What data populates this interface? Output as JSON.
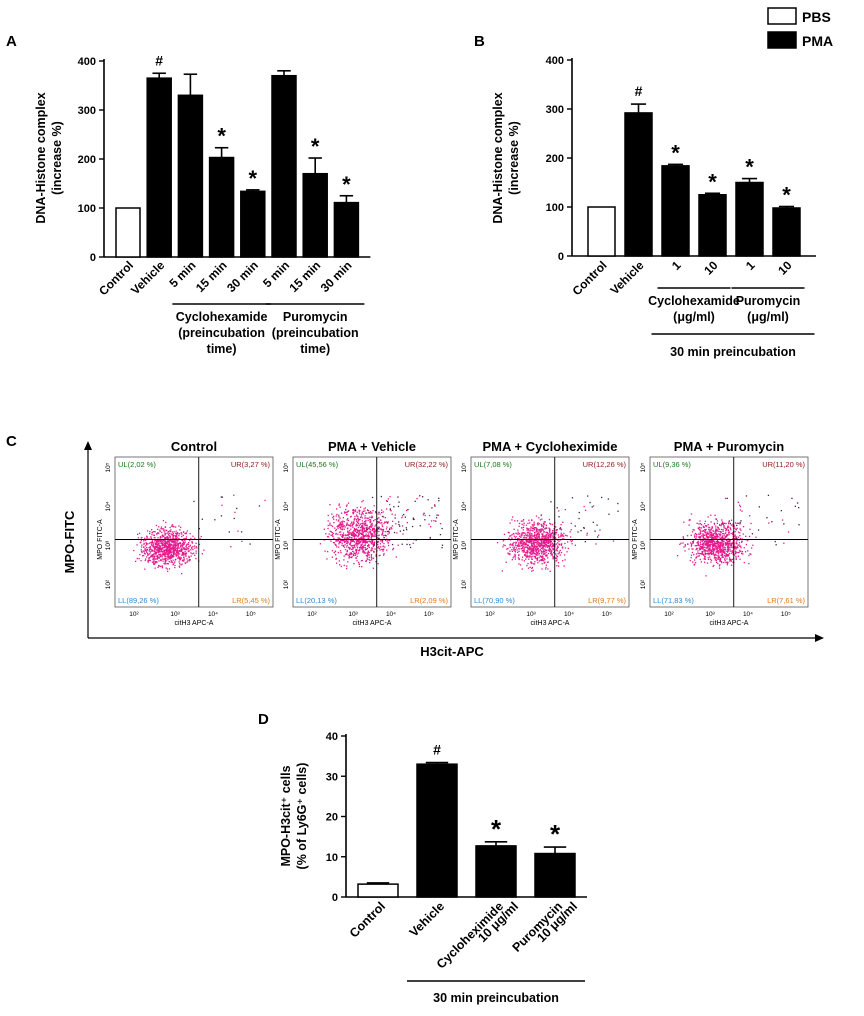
{
  "panel_letters": {
    "A": "A",
    "B": "B",
    "C": "C",
    "D": "D"
  },
  "legend": {
    "items": [
      {
        "label": "PBS",
        "fill": "#ffffff"
      },
      {
        "label": "PMA",
        "fill": "#000000"
      }
    ]
  },
  "colors": {
    "bar_pma": "#000000",
    "bar_pbs": "#ffffff",
    "axis": "#000000",
    "dots_main": "#e6198c",
    "dots_dark": "#3d2646",
    "gate_ul": "#1a7a1a",
    "gate_ur": "#8b1a1a",
    "gate_ll": "#2a8ad4",
    "gate_lr": "#e07a1a"
  },
  "chart_data": [
    {
      "id": "A",
      "type": "bar",
      "ylabel": "DNA-Histone complex (increase %)",
      "ylabel_lines": [
        "DNA-Histone complex",
        "(increase %)"
      ],
      "ylim": [
        0,
        400
      ],
      "yticks": [
        0,
        100,
        200,
        300,
        400
      ],
      "categories": [
        "Control",
        "Vehicle",
        "5 min",
        "15 min",
        "30 min",
        "5 min",
        "15 min",
        "30 min"
      ],
      "values": [
        100,
        365,
        330,
        203,
        134,
        370,
        170,
        111
      ],
      "errors": [
        0,
        10,
        43,
        20,
        3,
        10,
        32,
        14
      ],
      "fills": [
        "#ffffff",
        "#000000",
        "#000000",
        "#000000",
        "#000000",
        "#000000",
        "#000000",
        "#000000"
      ],
      "markers": [
        "",
        "#",
        "",
        "*",
        "*",
        "",
        "*",
        "*"
      ],
      "groups": [
        {
          "lines": [
            "Cyclohexamide",
            "(preincubation",
            "time)"
          ],
          "from": 2,
          "to": 4
        },
        {
          "lines": [
            "Puromycin",
            "(preincubation",
            "time)"
          ],
          "from": 5,
          "to": 7
        }
      ]
    },
    {
      "id": "B",
      "type": "bar",
      "ylabel": "DNA-Histone complex (increase %)",
      "ylabel_lines": [
        "DNA-Histone complex",
        "(increase %)"
      ],
      "ylim": [
        0,
        400
      ],
      "yticks": [
        0,
        100,
        200,
        300,
        400
      ],
      "categories": [
        "Control",
        "Vehicle",
        "1",
        "10",
        "1",
        "10"
      ],
      "values": [
        100,
        292,
        184,
        125,
        150,
        98
      ],
      "errors": [
        0,
        18,
        3,
        3,
        8,
        3
      ],
      "fills": [
        "#ffffff",
        "#000000",
        "#000000",
        "#000000",
        "#000000",
        "#000000"
      ],
      "markers": [
        "",
        "#",
        "*",
        "*",
        "*",
        "*"
      ],
      "groups": [
        {
          "lines": [
            "Cyclohexamide",
            "(μg/ml)"
          ],
          "from": 2,
          "to": 3
        },
        {
          "lines": [
            "Puromycin",
            "(μg/ml)"
          ],
          "from": 4,
          "to": 5
        }
      ],
      "bottom_group": {
        "label": "30 min preincubation",
        "from": 2,
        "to": 5
      }
    },
    {
      "id": "C",
      "type": "scatter",
      "xlabel": "H3cit-APC",
      "ylabel": "MPO-FITC",
      "axis_x_label": "citH3 APC-A",
      "axis_y_label": "MPO FITC-A",
      "tick_labels": [
        "10²",
        "10³",
        "10⁴",
        "10⁵"
      ],
      "plots": [
        {
          "title": "Control",
          "UL": "UL(2,02 %)",
          "UR": "UR(3,27 %)",
          "LL": "LL(89,26 %)",
          "LR": "LR(5,45 %)"
        },
        {
          "title": "PMA + Vehicle",
          "UL": "UL(45,56 %)",
          "UR": "UR(32,22 %)",
          "LL": "LL(20,13 %)",
          "LR": "LR(2,09 %)"
        },
        {
          "title": "PMA + Cycloheximide",
          "UL": "UL(7,08 %)",
          "UR": "UR(12,26 %)",
          "LL": "LL(70,90 %)",
          "LR": "LR(9,77 %)"
        },
        {
          "title": "PMA + Puromycin",
          "UL": "UL(9,36 %)",
          "UR": "UR(11,20 %)",
          "LL": "LL(71,83 %)",
          "LR": "LR(7,61 %)"
        }
      ]
    },
    {
      "id": "D",
      "type": "bar",
      "ylabel": "MPO-H3cit⁺ cells (% of Ly6G⁺ cells)",
      "ylabel_lines": [
        "MPO-H3cit⁺ cells",
        "(% of Ly6G⁺ cells)"
      ],
      "ylim": [
        0,
        40
      ],
      "yticks": [
        0,
        10,
        20,
        30,
        40
      ],
      "categories": [
        [
          "Control"
        ],
        [
          "Vehicle"
        ],
        [
          "Cycloheximide",
          "10 μg/ml"
        ],
        [
          "Puromycin",
          "10 μg/ml"
        ]
      ],
      "values": [
        3.2,
        33,
        12.7,
        10.8
      ],
      "errors": [
        0.3,
        0.4,
        1,
        1.6
      ],
      "fills": [
        "#ffffff",
        "#000000",
        "#000000",
        "#000000"
      ],
      "markers": [
        "",
        "#",
        "*",
        "*"
      ],
      "bottom_group": {
        "label": "30 min preincubation",
        "from": 1,
        "to": 3
      }
    }
  ]
}
